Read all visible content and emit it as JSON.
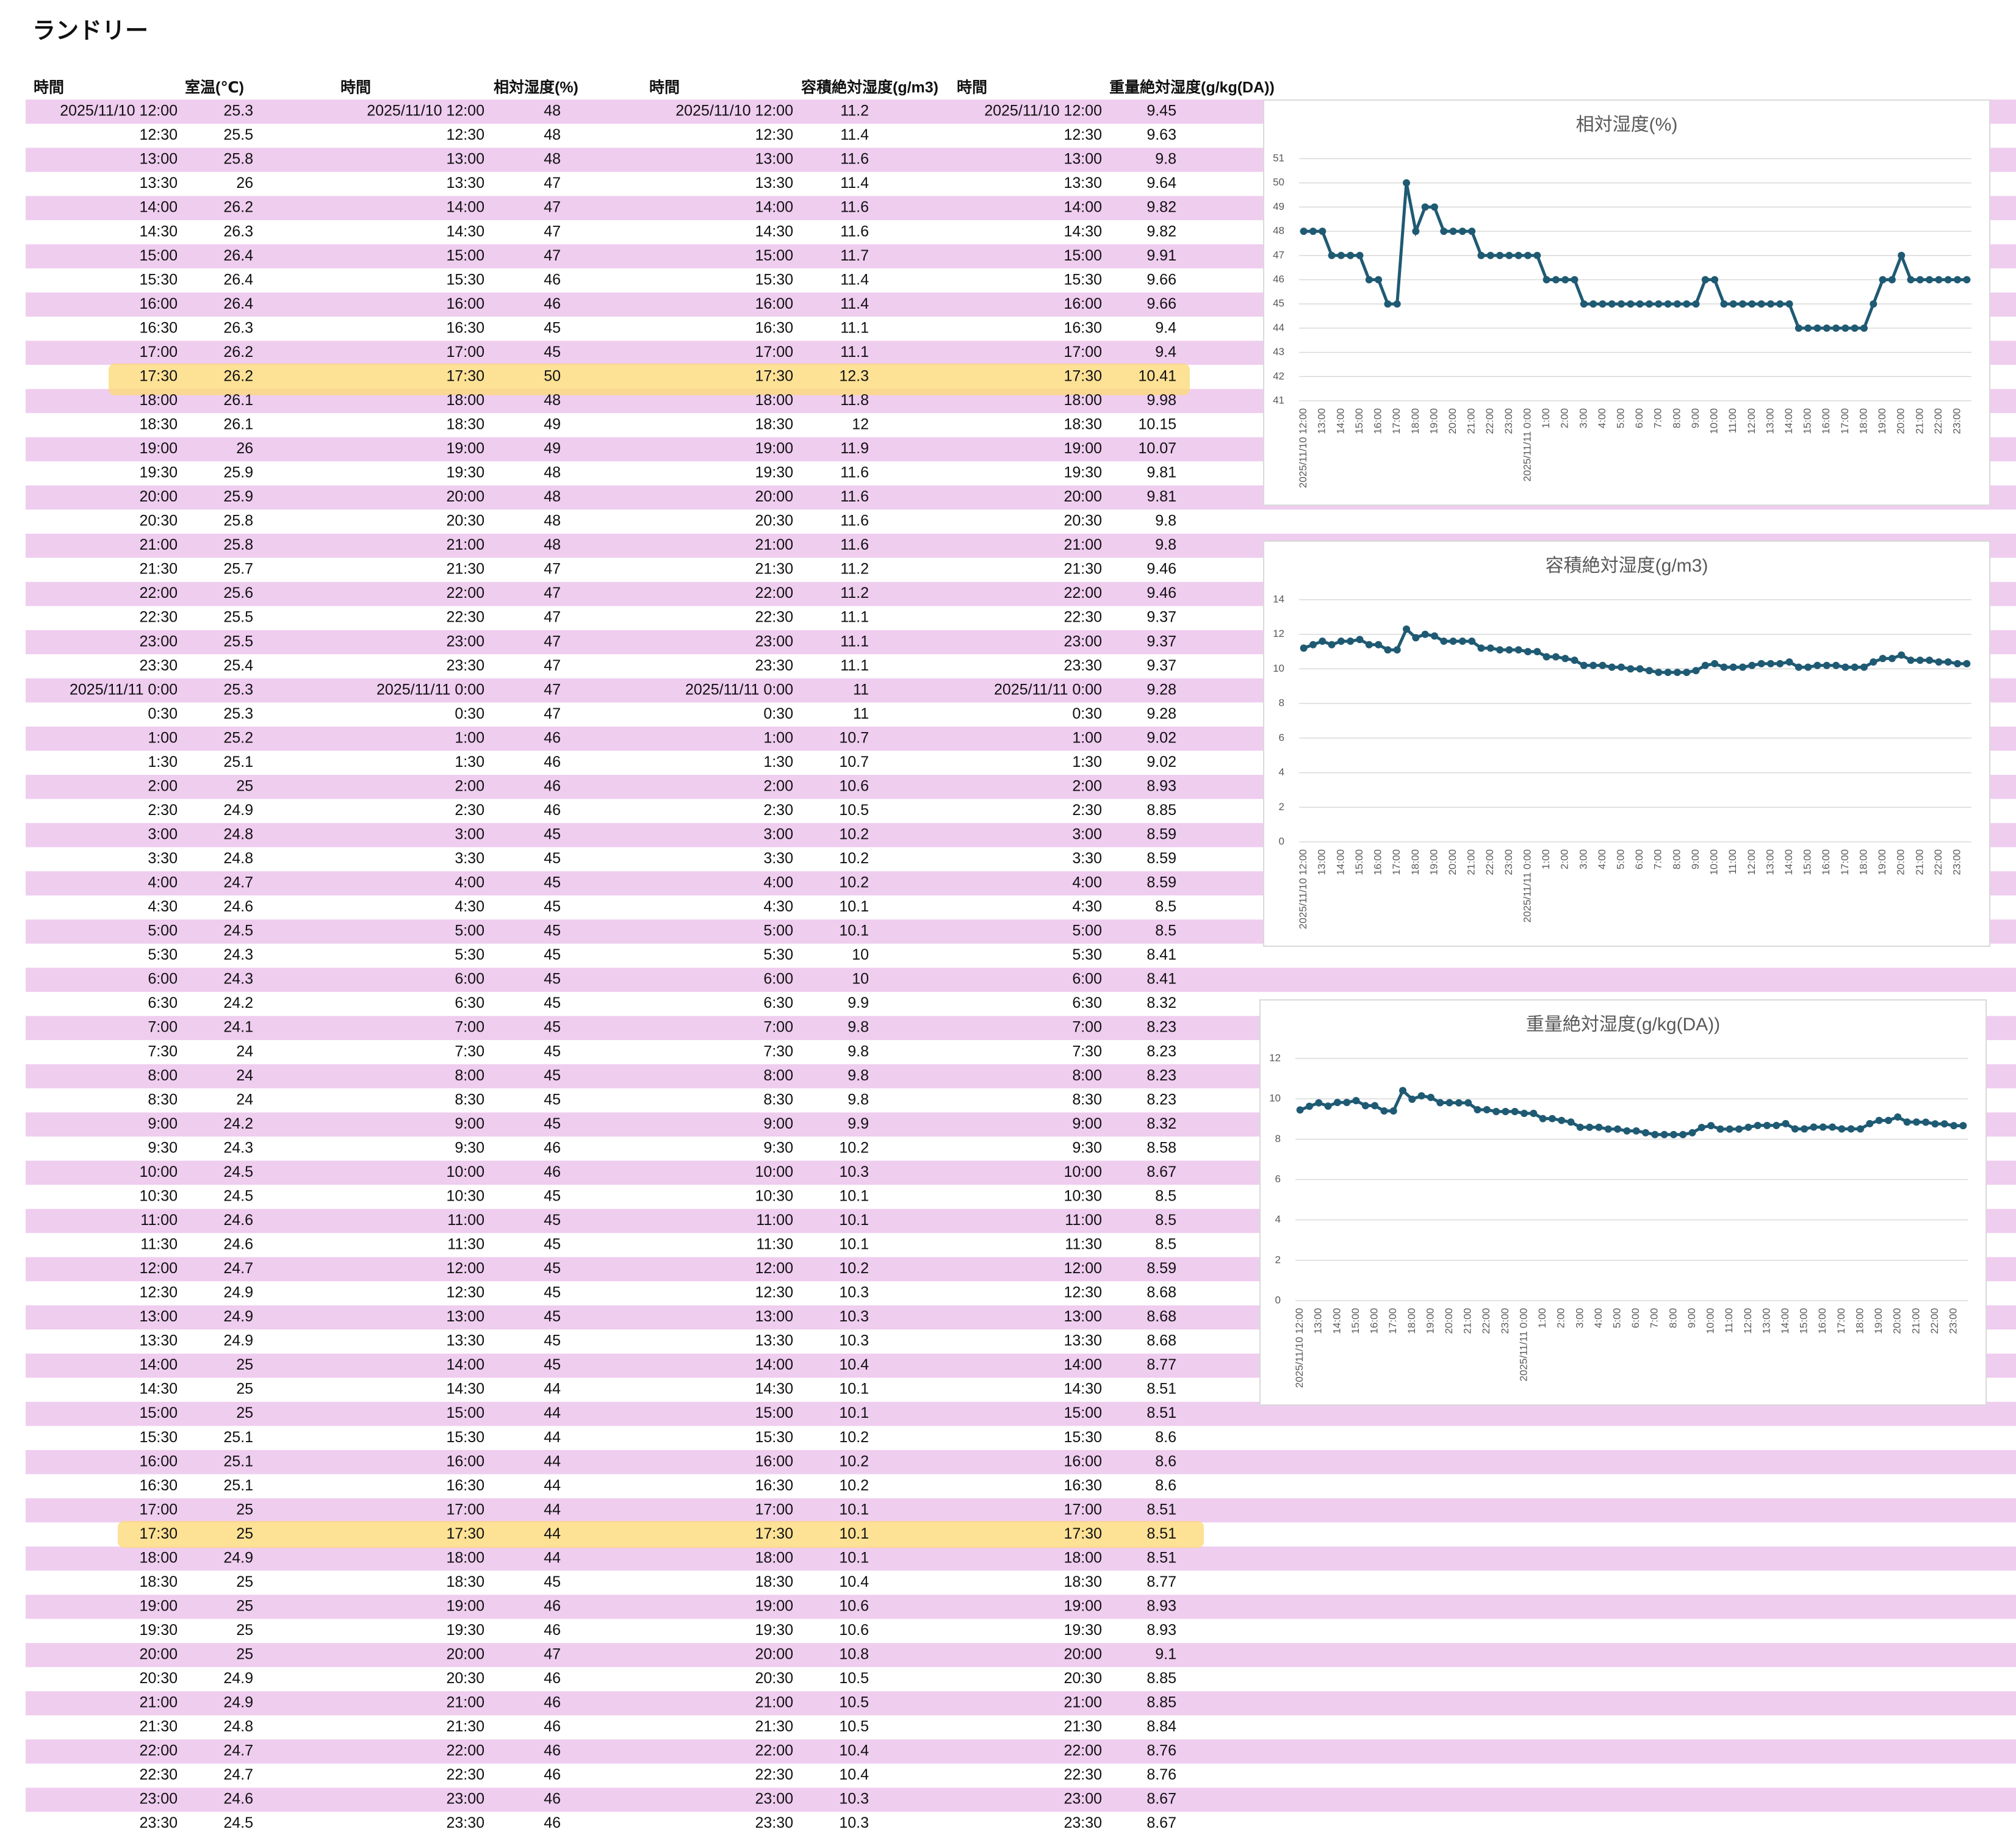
{
  "page_title": "ランドリー",
  "table": {
    "header": [
      "時間",
      "室温(℃)",
      "時間",
      "相対湿度(%)",
      "時間",
      "容積絶対湿度(g/m3)",
      "時間",
      "重量絶対湿度(g/kg(DA))"
    ],
    "rows": [
      [
        "2025/11/10 12:00",
        25.3
      ],
      [
        "12:30",
        25.5
      ],
      [
        "13:00",
        25.8
      ],
      [
        "13:30",
        26
      ],
      [
        "14:00",
        26.2
      ],
      [
        "14:30",
        26.3
      ],
      [
        "15:00",
        26.4
      ],
      [
        "15:30",
        26.4
      ],
      [
        "16:00",
        26.4
      ],
      [
        "16:30",
        26.3
      ],
      [
        "17:00",
        26.2
      ],
      [
        "17:30",
        26.2
      ],
      [
        "18:00",
        26.1
      ],
      [
        "18:30",
        26.1
      ],
      [
        "19:00",
        26
      ],
      [
        "19:30",
        25.9
      ],
      [
        "20:00",
        25.9
      ],
      [
        "20:30",
        25.8
      ],
      [
        "21:00",
        25.8
      ],
      [
        "21:30",
        25.7
      ],
      [
        "22:00",
        25.6
      ],
      [
        "22:30",
        25.5
      ],
      [
        "23:00",
        25.5
      ],
      [
        "23:30",
        25.4
      ],
      [
        "2025/11/11 0:00",
        25.3
      ],
      [
        "0:30",
        25.3
      ],
      [
        "1:00",
        25.2
      ],
      [
        "1:30",
        25.1
      ],
      [
        "2:00",
        25
      ],
      [
        "2:30",
        24.9
      ],
      [
        "3:00",
        24.8
      ],
      [
        "3:30",
        24.8
      ],
      [
        "4:00",
        24.7
      ],
      [
        "4:30",
        24.6
      ],
      [
        "5:00",
        24.5
      ],
      [
        "5:30",
        24.3
      ],
      [
        "6:00",
        24.3
      ],
      [
        "6:30",
        24.2
      ],
      [
        "7:00",
        24.1
      ],
      [
        "7:30",
        24
      ],
      [
        "8:00",
        24
      ],
      [
        "8:30",
        24
      ],
      [
        "9:00",
        24.2
      ],
      [
        "9:30",
        24.3
      ],
      [
        "10:00",
        24.5
      ],
      [
        "10:30",
        24.5
      ],
      [
        "11:00",
        24.6
      ],
      [
        "11:30",
        24.6
      ],
      [
        "12:00",
        24.7
      ],
      [
        "12:30",
        24.9
      ],
      [
        "13:00",
        24.9
      ],
      [
        "13:30",
        24.9
      ],
      [
        "14:00",
        25
      ],
      [
        "14:30",
        25
      ],
      [
        "15:00",
        25
      ],
      [
        "15:30",
        25.1
      ],
      [
        "16:00",
        25.1
      ],
      [
        "16:30",
        25.1
      ],
      [
        "17:00",
        25
      ],
      [
        "17:30",
        25
      ],
      [
        "18:00",
        24.9
      ],
      [
        "18:30",
        25
      ],
      [
        "19:00",
        25
      ],
      [
        "19:30",
        25
      ],
      [
        "20:00",
        25
      ],
      [
        "20:30",
        24.9
      ],
      [
        "21:00",
        24.9
      ],
      [
        "21:30",
        24.8
      ],
      [
        "22:00",
        24.7
      ],
      [
        "22:30",
        24.7
      ],
      [
        "23:00",
        24.6
      ],
      [
        "23:30",
        24.5
      ]
    ]
  },
  "chart_data": [
    {
      "type": "line",
      "title": "相対湿度(%)",
      "color": "#1f5a73",
      "grid": true,
      "ylim": [
        41,
        51
      ],
      "yticks": [
        41,
        42,
        43,
        44,
        45,
        46,
        47,
        48,
        49,
        50,
        51
      ],
      "categories": [
        "2025/11/10 12:00",
        null,
        "13:00",
        null,
        "14:00",
        null,
        "15:00",
        null,
        "16:00",
        null,
        "17:00",
        null,
        "18:00",
        null,
        "19:00",
        null,
        "20:00",
        null,
        "21:00",
        null,
        "22:00",
        null,
        "23:00",
        null,
        "2025/11/11 0:00",
        null,
        "1:00",
        null,
        "2:00",
        null,
        "3:00",
        null,
        "4:00",
        null,
        "5:00",
        null,
        "6:00",
        null,
        "7:00",
        null,
        "8:00",
        null,
        "9:00",
        null,
        "10:00",
        null,
        "11:00",
        null,
        "12:00",
        null,
        "13:00",
        null,
        "14:00",
        null,
        "15:00",
        null,
        "16:00",
        null,
        "17:00",
        null,
        "18:00",
        null,
        "19:00",
        null,
        "20:00",
        null,
        "21:00",
        null,
        "22:00",
        null,
        "23:00",
        null
      ],
      "values": [
        48,
        48,
        48,
        47,
        47,
        47,
        47,
        46,
        46,
        45,
        45,
        50,
        48,
        49,
        49,
        48,
        48,
        48,
        48,
        47,
        47,
        47,
        47,
        47,
        47,
        47,
        46,
        46,
        46,
        46,
        45,
        45,
        45,
        45,
        45,
        45,
        45,
        45,
        45,
        45,
        45,
        45,
        45,
        46,
        46,
        45,
        45,
        45,
        45,
        45,
        45,
        45,
        45,
        44,
        44,
        44,
        44,
        44,
        44,
        44,
        44,
        45,
        46,
        46,
        47,
        46,
        46,
        46,
        46,
        46,
        46,
        46
      ]
    },
    {
      "type": "line",
      "title": "容積絶対湿度(g/m3)",
      "color": "#1f5a73",
      "grid": true,
      "ylim": [
        0,
        14
      ],
      "yticks": [
        0,
        2,
        4,
        6,
        8,
        10,
        12,
        14
      ],
      "categories": [
        "2025/11/10 12:00",
        null,
        "13:00",
        null,
        "14:00",
        null,
        "15:00",
        null,
        "16:00",
        null,
        "17:00",
        null,
        "18:00",
        null,
        "19:00",
        null,
        "20:00",
        null,
        "21:00",
        null,
        "22:00",
        null,
        "23:00",
        null,
        "2025/11/11 0:00",
        null,
        "1:00",
        null,
        "2:00",
        null,
        "3:00",
        null,
        "4:00",
        null,
        "5:00",
        null,
        "6:00",
        null,
        "7:00",
        null,
        "8:00",
        null,
        "9:00",
        null,
        "10:00",
        null,
        "11:00",
        null,
        "12:00",
        null,
        "13:00",
        null,
        "14:00",
        null,
        "15:00",
        null,
        "16:00",
        null,
        "17:00",
        null,
        "18:00",
        null,
        "19:00",
        null,
        "20:00",
        null,
        "21:00",
        null,
        "22:00",
        null,
        "23:00",
        null
      ],
      "values": [
        11.2,
        11.4,
        11.6,
        11.4,
        11.6,
        11.6,
        11.7,
        11.4,
        11.4,
        11.1,
        11.1,
        12.3,
        11.8,
        12,
        11.9,
        11.6,
        11.6,
        11.6,
        11.6,
        11.2,
        11.2,
        11.1,
        11.1,
        11.1,
        11,
        11,
        10.7,
        10.7,
        10.6,
        10.5,
        10.2,
        10.2,
        10.2,
        10.1,
        10.1,
        10,
        10,
        9.9,
        9.8,
        9.8,
        9.8,
        9.8,
        9.9,
        10.2,
        10.3,
        10.1,
        10.1,
        10.1,
        10.2,
        10.3,
        10.3,
        10.3,
        10.4,
        10.1,
        10.1,
        10.2,
        10.2,
        10.2,
        10.1,
        10.1,
        10.1,
        10.4,
        10.6,
        10.6,
        10.8,
        10.5,
        10.5,
        10.5,
        10.4,
        10.4,
        10.3,
        10.3
      ]
    },
    {
      "type": "line",
      "title": "重量絶対湿度(g/kg(DA))",
      "color": "#1f5a73",
      "grid": true,
      "ylim": [
        0,
        12
      ],
      "yticks": [
        0,
        2,
        4,
        6,
        8,
        10,
        12
      ],
      "categories": [
        "2025/11/10 12:00",
        null,
        "13:00",
        null,
        "14:00",
        null,
        "15:00",
        null,
        "16:00",
        null,
        "17:00",
        null,
        "18:00",
        null,
        "19:00",
        null,
        "20:00",
        null,
        "21:00",
        null,
        "22:00",
        null,
        "23:00",
        null,
        "2025/11/11 0:00",
        null,
        "1:00",
        null,
        "2:00",
        null,
        "3:00",
        null,
        "4:00",
        null,
        "5:00",
        null,
        "6:00",
        null,
        "7:00",
        null,
        "8:00",
        null,
        "9:00",
        null,
        "10:00",
        null,
        "11:00",
        null,
        "12:00",
        null,
        "13:00",
        null,
        "14:00",
        null,
        "15:00",
        null,
        "16:00",
        null,
        "17:00",
        null,
        "18:00",
        null,
        "19:00",
        null,
        "20:00",
        null,
        "21:00",
        null,
        "22:00",
        null,
        "23:00",
        null
      ],
      "values": [
        9.45,
        9.63,
        9.8,
        9.64,
        9.82,
        9.82,
        9.91,
        9.66,
        9.66,
        9.4,
        9.4,
        10.41,
        9.98,
        10.15,
        10.07,
        9.81,
        9.81,
        9.8,
        9.8,
        9.46,
        9.46,
        9.37,
        9.37,
        9.37,
        9.28,
        9.28,
        9.02,
        9.02,
        8.93,
        8.85,
        8.59,
        8.59,
        8.59,
        8.5,
        8.5,
        8.41,
        8.41,
        8.32,
        8.23,
        8.23,
        8.23,
        8.23,
        8.32,
        8.58,
        8.67,
        8.5,
        8.5,
        8.5,
        8.59,
        8.68,
        8.68,
        8.68,
        8.77,
        8.51,
        8.51,
        8.6,
        8.6,
        8.6,
        8.51,
        8.51,
        8.51,
        8.77,
        8.93,
        8.93,
        9.1,
        8.85,
        8.85,
        8.84,
        8.76,
        8.76,
        8.67,
        8.67
      ]
    }
  ]
}
